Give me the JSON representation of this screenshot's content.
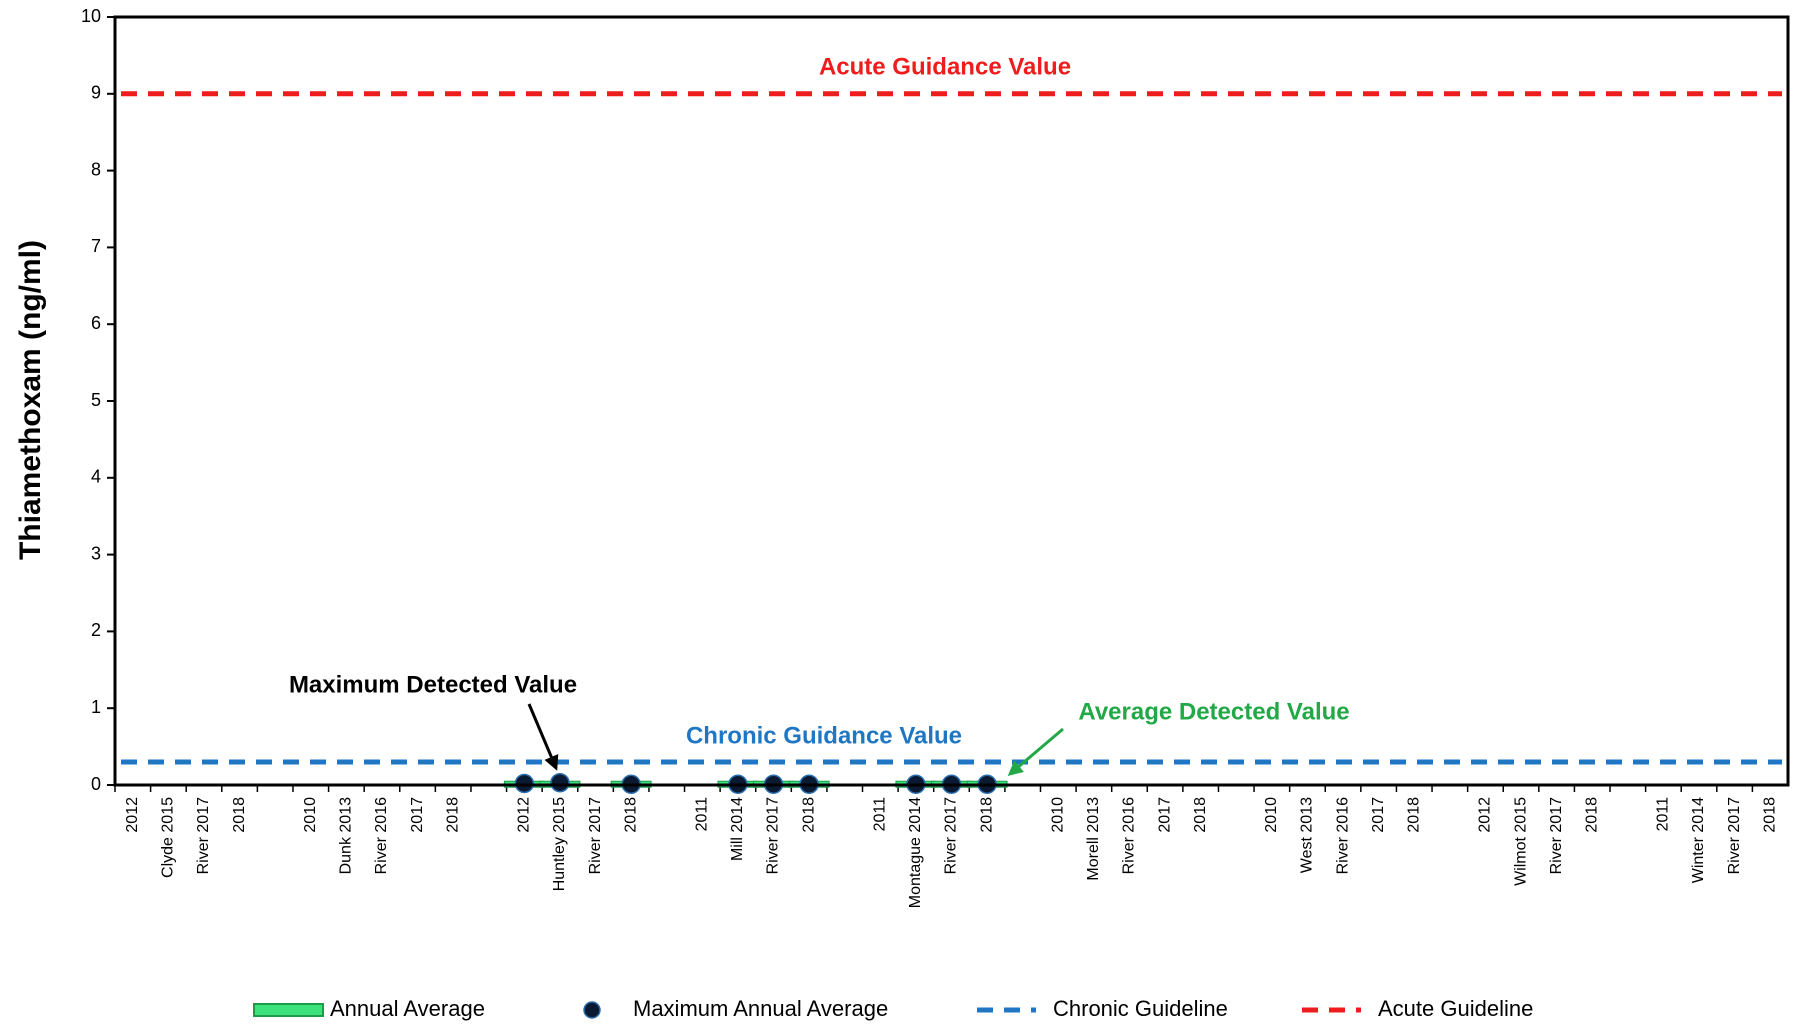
{
  "chart_data": {
    "type": "line",
    "y_label": "Thiamethoxam  (ng/ml)",
    "categories": [
      "2012",
      "Clyde 2015",
      "River 2017",
      "2018",
      null,
      "2010",
      "Dunk 2013",
      "River 2016",
      "2017",
      "2018",
      null,
      "2012",
      "Huntley 2015",
      "River 2017",
      "2018",
      null,
      "2011",
      "Mill 2014",
      "River 2017",
      "2018",
      null,
      "2011",
      "Montague 2014",
      "River 2017",
      "2018",
      null,
      "2010",
      "Morell 2013",
      "River 2016",
      "2017",
      "2018",
      null,
      "2010",
      "West 2013",
      "River 2016",
      "2017",
      "2018",
      null,
      "2012",
      "Wilmot 2015",
      "River 2017",
      "2018",
      null,
      "2011",
      "Winter 2014",
      "River 2017",
      "2018"
    ],
    "series": [
      {
        "name": "Annual Average",
        "color": "#3ee27d",
        "values": [
          null,
          null,
          null,
          null,
          null,
          null,
          null,
          null,
          null,
          null,
          null,
          0.01,
          0.01,
          null,
          0.01,
          null,
          null,
          0.01,
          0.01,
          0.01,
          null,
          null,
          0.01,
          0.01,
          0.01,
          null,
          null,
          null,
          null,
          null,
          null,
          null,
          null,
          null,
          null,
          null,
          null,
          null,
          null,
          null,
          null,
          null,
          null,
          null,
          null,
          null,
          null
        ]
      },
      {
        "name": "Maximum Annual Average",
        "color": "#0b1a33",
        "values": [
          null,
          null,
          null,
          null,
          null,
          null,
          null,
          null,
          null,
          null,
          null,
          0.02,
          0.03,
          null,
          0.01,
          null,
          null,
          0.01,
          0.01,
          0.01,
          null,
          null,
          0.01,
          0.01,
          0.01,
          null,
          null,
          null,
          null,
          null,
          null,
          null,
          null,
          null,
          null,
          null,
          null,
          null,
          null,
          null,
          null,
          null,
          null,
          null,
          null,
          null,
          null
        ]
      }
    ],
    "guidelines": [
      {
        "name": "Chronic Guideline",
        "value": 0.3,
        "color": "#1f77c4",
        "label": "Chronic Guidance Value"
      },
      {
        "name": "Acute Guideline",
        "value": 9,
        "color": "#ee1c1c",
        "label": "Acute Guidance Value"
      }
    ],
    "annotations": [
      "Maximum Detected Value",
      "Average Detected Value"
    ],
    "ylim": [
      0,
      10
    ],
    "yticks": [
      0,
      1,
      2,
      3,
      4,
      5,
      6,
      7,
      8,
      9,
      10
    ],
    "grid": false
  }
}
